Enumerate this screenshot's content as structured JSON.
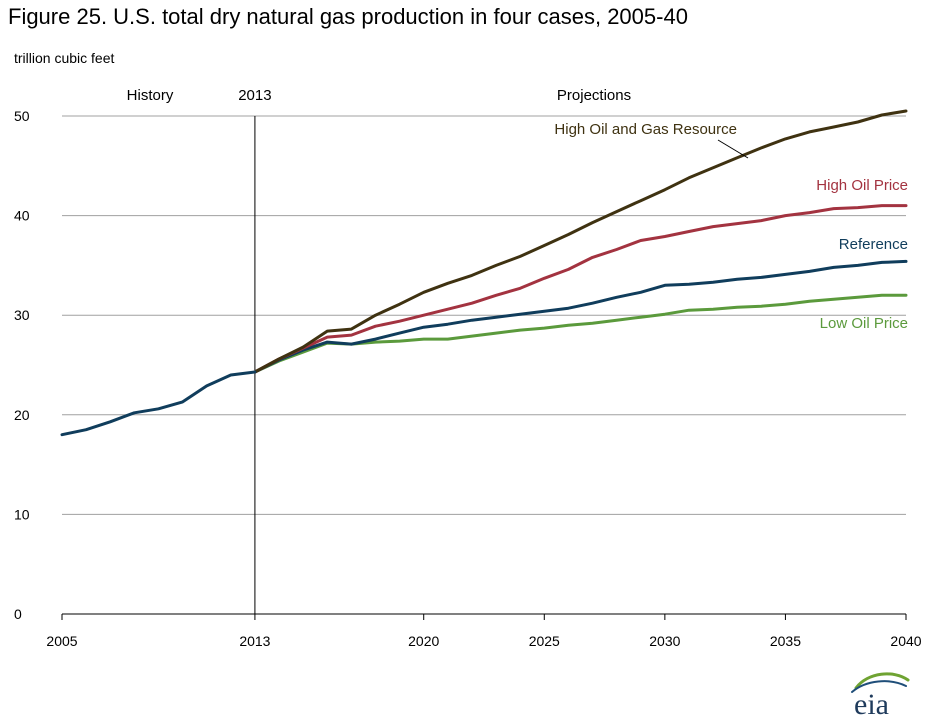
{
  "title": "Figure 25. U.S. total dry natural gas production in four cases, 2005-40",
  "unit_label": "trillion cubic feet",
  "logo_text": "eia",
  "colors": {
    "reference": "#103d5c",
    "high_oil_price": "#a33340",
    "low_oil_price": "#5b9a3c",
    "high_resource": "#3f3211",
    "grid": "#a0a0a0",
    "axis": "#000000"
  },
  "chart_data": {
    "type": "line",
    "title": "Figure 25. U.S. total dry natural gas production in four cases, 2005-40",
    "ylabel": "trillion cubic feet",
    "xlim": [
      2005,
      2040
    ],
    "ylim": [
      0,
      50
    ],
    "x_ticks": [
      2005,
      2013,
      2020,
      2025,
      2030,
      2035,
      2040
    ],
    "y_ticks": [
      0,
      10,
      20,
      30,
      40,
      50
    ],
    "grid": "horizontal",
    "annotations": {
      "history": "History",
      "divider": "2013",
      "projections": "Projections"
    },
    "history": {
      "x": [
        2005,
        2006,
        2007,
        2008,
        2009,
        2010,
        2011,
        2012,
        2013
      ],
      "values": [
        18.0,
        18.5,
        19.3,
        20.2,
        20.6,
        21.3,
        22.9,
        24.0,
        24.3
      ]
    },
    "series": [
      {
        "name": "High Oil and Gas Resource",
        "color_key": "high_resource",
        "x": [
          2013,
          2014,
          2015,
          2016,
          2017,
          2018,
          2019,
          2020,
          2021,
          2022,
          2023,
          2024,
          2025,
          2026,
          2027,
          2028,
          2029,
          2030,
          2031,
          2032,
          2033,
          2034,
          2035,
          2036,
          2037,
          2038,
          2039,
          2040
        ],
        "values": [
          24.3,
          25.6,
          26.8,
          28.4,
          28.6,
          30.0,
          31.1,
          32.3,
          33.2,
          34.0,
          35.0,
          35.9,
          37.0,
          38.1,
          39.3,
          40.4,
          41.5,
          42.6,
          43.8,
          44.8,
          45.8,
          46.8,
          47.7,
          48.4,
          48.9,
          49.4,
          50.1,
          50.5
        ]
      },
      {
        "name": "High Oil Price",
        "color_key": "high_oil_price",
        "x": [
          2013,
          2014,
          2015,
          2016,
          2017,
          2018,
          2019,
          2020,
          2021,
          2022,
          2023,
          2024,
          2025,
          2026,
          2027,
          2028,
          2029,
          2030,
          2031,
          2032,
          2033,
          2034,
          2035,
          2036,
          2037,
          2038,
          2039,
          2040
        ],
        "values": [
          24.3,
          25.6,
          26.7,
          27.8,
          28.0,
          28.9,
          29.4,
          30.0,
          30.6,
          31.2,
          32.0,
          32.7,
          33.7,
          34.6,
          35.8,
          36.6,
          37.5,
          37.9,
          38.4,
          38.9,
          39.2,
          39.5,
          40.0,
          40.3,
          40.7,
          40.8,
          41.0,
          41.0
        ]
      },
      {
        "name": "Reference",
        "color_key": "reference",
        "x": [
          2013,
          2014,
          2015,
          2016,
          2017,
          2018,
          2019,
          2020,
          2021,
          2022,
          2023,
          2024,
          2025,
          2026,
          2027,
          2028,
          2029,
          2030,
          2031,
          2032,
          2033,
          2034,
          2035,
          2036,
          2037,
          2038,
          2039,
          2040
        ],
        "values": [
          24.3,
          25.5,
          26.5,
          27.3,
          27.1,
          27.6,
          28.2,
          28.8,
          29.1,
          29.5,
          29.8,
          30.1,
          30.4,
          30.7,
          31.2,
          31.8,
          32.3,
          33.0,
          33.1,
          33.3,
          33.6,
          33.8,
          34.1,
          34.4,
          34.8,
          35.0,
          35.3,
          35.4
        ]
      },
      {
        "name": "Low Oil Price",
        "color_key": "low_oil_price",
        "x": [
          2013,
          2014,
          2015,
          2016,
          2017,
          2018,
          2019,
          2020,
          2021,
          2022,
          2023,
          2024,
          2025,
          2026,
          2027,
          2028,
          2029,
          2030,
          2031,
          2032,
          2033,
          2034,
          2035,
          2036,
          2037,
          2038,
          2039,
          2040
        ],
        "values": [
          24.3,
          25.4,
          26.3,
          27.2,
          27.1,
          27.3,
          27.4,
          27.6,
          27.6,
          27.9,
          28.2,
          28.5,
          28.7,
          29.0,
          29.2,
          29.5,
          29.8,
          30.1,
          30.5,
          30.6,
          30.8,
          30.9,
          31.1,
          31.4,
          31.6,
          31.8,
          32.0,
          32.0
        ]
      }
    ]
  }
}
